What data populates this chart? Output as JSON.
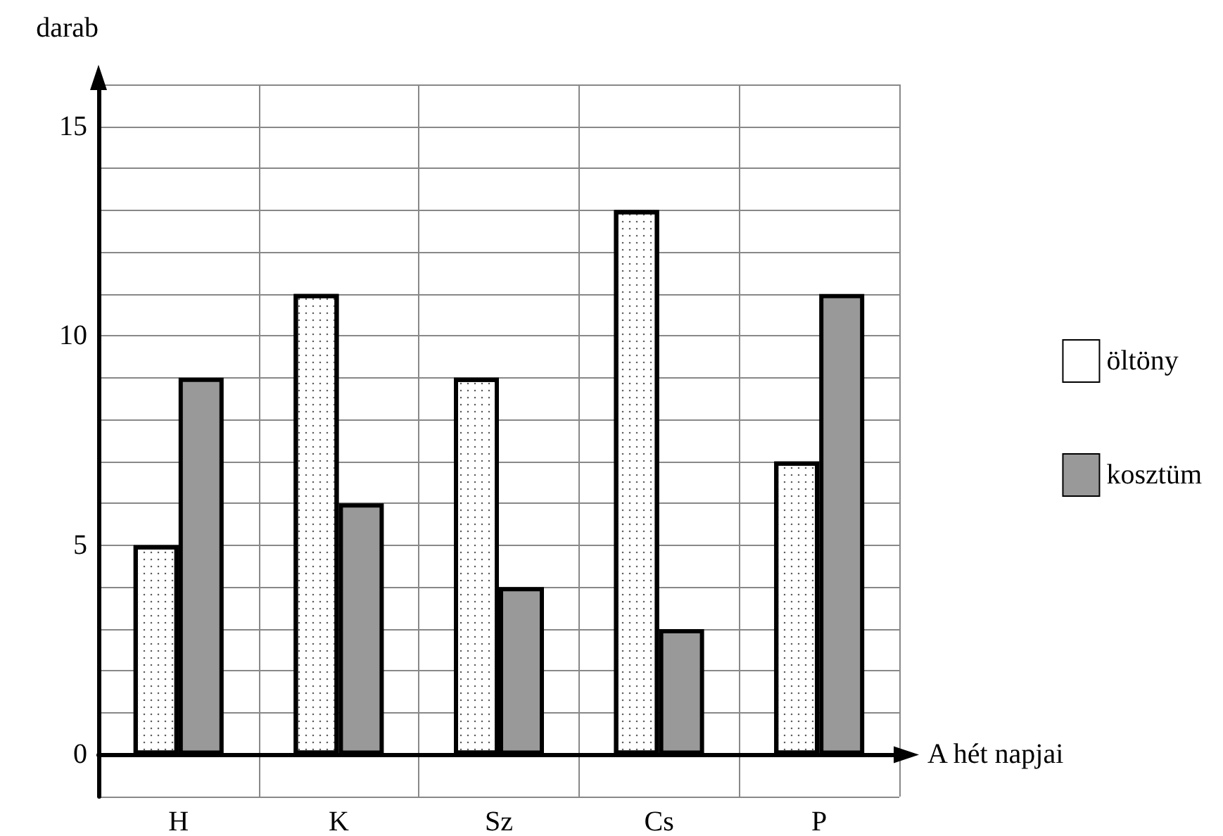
{
  "chart_data": {
    "type": "bar",
    "xlabel": "A hét napjai",
    "ylabel": "darab",
    "categories": [
      "H",
      "K",
      "Sz",
      "Cs",
      "P"
    ],
    "series": [
      {
        "name": "öltöny",
        "color": "#ffffff",
        "values": [
          5,
          11,
          9,
          13,
          7
        ]
      },
      {
        "name": "kosztüm",
        "color": "#999999",
        "values": [
          9,
          6,
          4,
          3,
          11
        ]
      }
    ],
    "ylim": [
      -1,
      16
    ],
    "yticks": [
      {
        "value": -1,
        "label": null
      },
      0,
      {
        "value": 1,
        "label": null
      },
      {
        "value": 2,
        "label": null
      },
      {
        "value": 3,
        "label": null
      },
      {
        "value": 4,
        "label": null
      },
      5,
      {
        "value": 6,
        "label": null
      },
      {
        "value": 7,
        "label": null
      },
      {
        "value": 8,
        "label": null
      },
      {
        "value": 9,
        "label": null
      },
      10,
      {
        "value": 11,
        "label": null
      },
      {
        "value": 12,
        "label": null
      },
      {
        "value": 13,
        "label": null
      },
      {
        "value": 14,
        "label": null
      },
      15,
      {
        "value": 16,
        "label": null
      }
    ],
    "grid": true,
    "legend": "right"
  }
}
